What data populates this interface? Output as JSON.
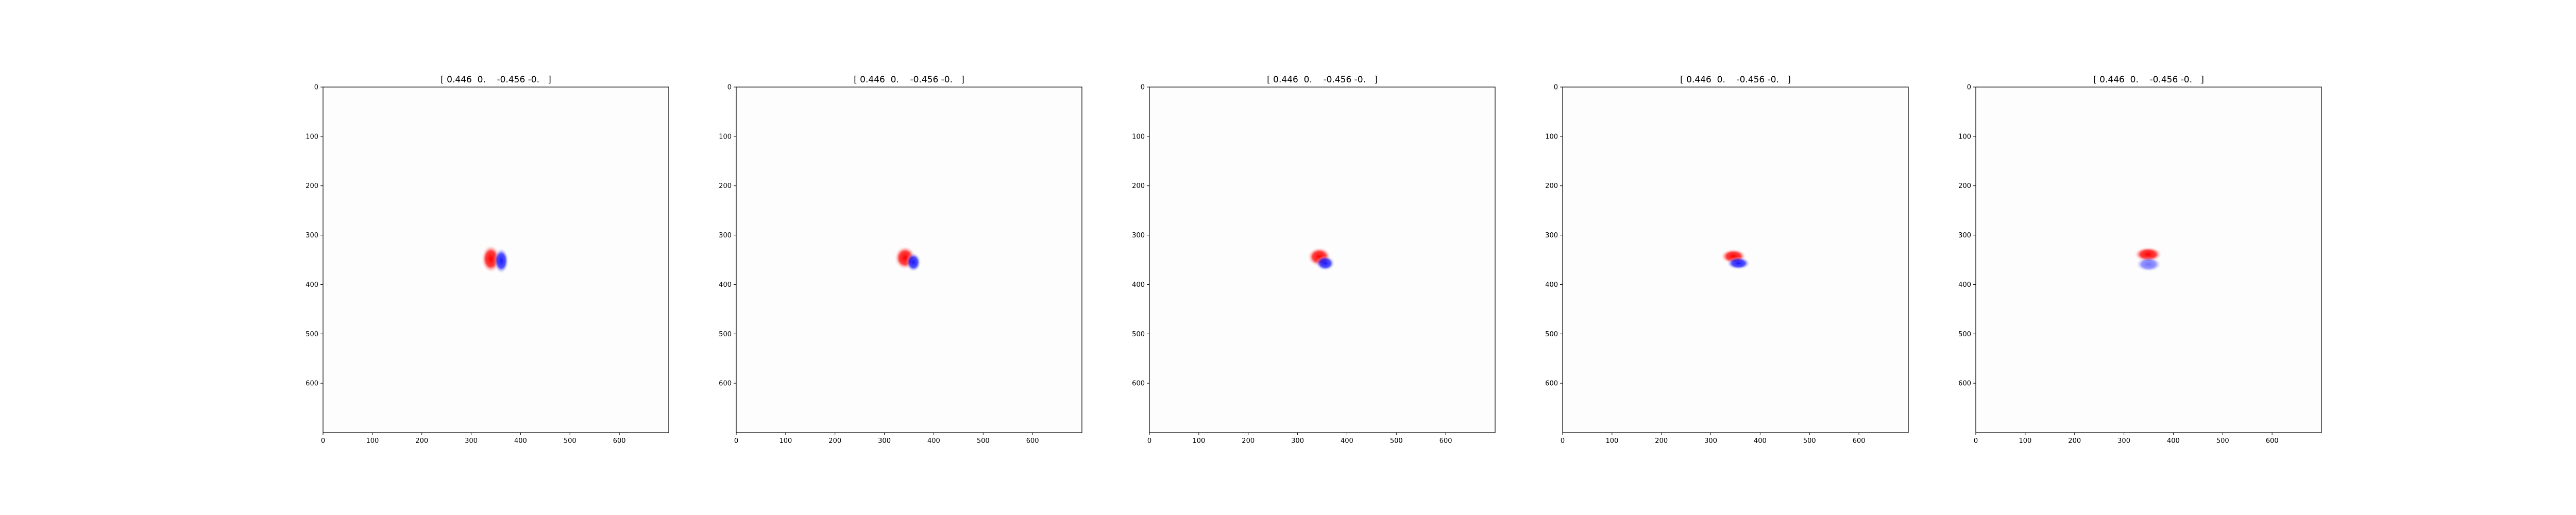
{
  "chart_data": [
    {
      "type": "heatmap",
      "title": "[ 0.446  0.    -0.456 -0.   ]",
      "xlabel": "",
      "ylabel": "",
      "xlim": [
        0,
        700
      ],
      "ylim": [
        700,
        0
      ],
      "x_ticks": [
        "0",
        "100",
        "200",
        "300",
        "400",
        "500",
        "600"
      ],
      "y_ticks": [
        "0",
        "100",
        "200",
        "300",
        "400",
        "500",
        "600"
      ],
      "grid": false,
      "colormap": {
        "positive": "#ff0000",
        "negative": "#0000ff",
        "zero": "#ffffff"
      },
      "blobs": [
        {
          "x": 340,
          "y": 348,
          "sx": 9,
          "sy": 13,
          "value": 1.0
        },
        {
          "x": 361,
          "y": 352,
          "sx": 7,
          "sy": 12,
          "value": -0.9
        }
      ]
    },
    {
      "type": "heatmap",
      "title": "[ 0.446  0.    -0.456 -0.   ]",
      "xlabel": "",
      "ylabel": "",
      "xlim": [
        0,
        700
      ],
      "ylim": [
        700,
        0
      ],
      "x_ticks": [
        "0",
        "100",
        "200",
        "300",
        "400",
        "500",
        "600"
      ],
      "y_ticks": [
        "0",
        "100",
        "200",
        "300",
        "400",
        "500",
        "600"
      ],
      "grid": false,
      "colormap": {
        "positive": "#ff0000",
        "negative": "#0000ff",
        "zero": "#ffffff"
      },
      "blobs": [
        {
          "x": 342,
          "y": 346,
          "sx": 10,
          "sy": 11,
          "value": 1.0
        },
        {
          "x": 359,
          "y": 355,
          "sx": 7,
          "sy": 9,
          "value": -0.9
        }
      ]
    },
    {
      "type": "heatmap",
      "title": "[ 0.446  0.    -0.456 -0.   ]",
      "xlabel": "",
      "ylabel": "",
      "xlim": [
        0,
        700
      ],
      "ylim": [
        700,
        0
      ],
      "x_ticks": [
        "0",
        "100",
        "200",
        "300",
        "400",
        "500",
        "600"
      ],
      "y_ticks": [
        "0",
        "100",
        "200",
        "300",
        "400",
        "500",
        "600"
      ],
      "grid": false,
      "colormap": {
        "positive": "#ff0000",
        "negative": "#0000ff",
        "zero": "#ffffff"
      },
      "blobs": [
        {
          "x": 344,
          "y": 344,
          "sx": 11,
          "sy": 9,
          "value": 1.0
        },
        {
          "x": 356,
          "y": 357,
          "sx": 9,
          "sy": 7,
          "value": -0.9
        }
      ]
    },
    {
      "type": "heatmap",
      "title": "[ 0.446  0.    -0.456 -0.   ]",
      "xlabel": "",
      "ylabel": "",
      "xlim": [
        0,
        700
      ],
      "ylim": [
        700,
        0
      ],
      "x_ticks": [
        "0",
        "100",
        "200",
        "300",
        "400",
        "500",
        "600"
      ],
      "y_ticks": [
        "0",
        "100",
        "200",
        "300",
        "400",
        "500",
        "600"
      ],
      "grid": false,
      "colormap": {
        "positive": "#ff0000",
        "negative": "#0000ff",
        "zero": "#ffffff"
      },
      "blobs": [
        {
          "x": 346,
          "y": 343,
          "sx": 12,
          "sy": 7,
          "value": 1.0
        },
        {
          "x": 356,
          "y": 357,
          "sx": 11,
          "sy": 6,
          "value": -0.9
        }
      ]
    },
    {
      "type": "heatmap",
      "title": "[ 0.446  0.    -0.456 -0.   ]",
      "xlabel": "",
      "ylabel": "",
      "xlim": [
        0,
        700
      ],
      "ylim": [
        700,
        0
      ],
      "x_ticks": [
        "0",
        "100",
        "200",
        "300",
        "400",
        "500",
        "600"
      ],
      "y_ticks": [
        "0",
        "100",
        "200",
        "300",
        "400",
        "500",
        "600"
      ],
      "grid": false,
      "colormap": {
        "positive": "#ff0000",
        "negative": "#0000ff",
        "zero": "#ffffff"
      },
      "blobs": [
        {
          "x": 349,
          "y": 339,
          "sx": 13,
          "sy": 7,
          "value": 1.0
        },
        {
          "x": 350,
          "y": 359,
          "sx": 12,
          "sy": 7,
          "value": -0.55
        }
      ]
    }
  ]
}
